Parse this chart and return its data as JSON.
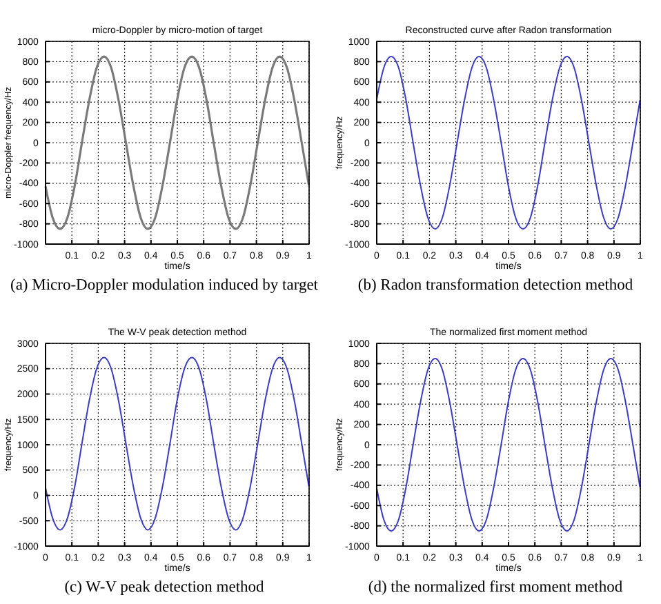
{
  "chart_data": [
    {
      "type": "line",
      "title": "micro-Doppler by micro-motion of target",
      "xlabel": "time/s",
      "ylabel": "micro-Doppler frequency/Hz",
      "annotations": [
        "(a) Micro-Doppler modulation induced by target"
      ],
      "xlim": [
        0,
        1
      ],
      "ylim": [
        -1000,
        1000
      ],
      "xticks": [
        0.1,
        0.2,
        0.3,
        0.4,
        0.5,
        0.6,
        0.7,
        0.8,
        0.9,
        1
      ],
      "yticks": [
        -1000,
        -800,
        -600,
        -400,
        -200,
        0,
        200,
        400,
        600,
        800,
        1000
      ],
      "grid": true,
      "line_style": "solid",
      "x": [
        0,
        0.027,
        0.055,
        0.083,
        0.111,
        0.138,
        0.166,
        0.194,
        0.222,
        0.249,
        0.277,
        0.305,
        0.333,
        0.361,
        0.388,
        0.416,
        0.444,
        0.472,
        0.499,
        0.527,
        0.555,
        0.583,
        0.611,
        0.638,
        0.666,
        0.694,
        0.722,
        0.749,
        0.777,
        0.805,
        0.833,
        0.861,
        0.888,
        0.916,
        0.944,
        0.972,
        0.999
      ],
      "series": [
        {
          "color": "#7a7a7a",
          "values": [
            -430,
            -740,
            -850,
            -740,
            -420,
            0,
            420,
            740,
            850,
            740,
            420,
            0,
            -420,
            -740,
            -850,
            -740,
            -420,
            0,
            420,
            740,
            850,
            740,
            420,
            0,
            -420,
            -740,
            -850,
            -740,
            -420,
            0,
            420,
            740,
            850,
            740,
            420,
            0,
            -420
          ]
        }
      ]
    },
    {
      "type": "line",
      "title": "Reconstructed curve after Radon transformation",
      "xlabel": "time/s",
      "ylabel": "frequency/Hz",
      "annotations": [
        "(b) Radon transformation detection method"
      ],
      "xlim": [
        0,
        1
      ],
      "ylim": [
        -1000,
        1000
      ],
      "xticks": [
        0,
        0.1,
        0.2,
        0.3,
        0.4,
        0.5,
        0.6,
        0.7,
        0.8,
        0.9,
        1
      ],
      "yticks": [
        -1000,
        -800,
        -600,
        -400,
        -200,
        0,
        200,
        400,
        600,
        800,
        1000
      ],
      "grid": true,
      "line_style": "solid",
      "x": [
        0,
        0.027,
        0.055,
        0.083,
        0.111,
        0.138,
        0.166,
        0.194,
        0.222,
        0.249,
        0.277,
        0.305,
        0.333,
        0.361,
        0.388,
        0.416,
        0.444,
        0.472,
        0.499,
        0.527,
        0.555,
        0.583,
        0.611,
        0.638,
        0.666,
        0.694,
        0.722,
        0.749,
        0.777,
        0.805,
        0.833,
        0.861,
        0.888,
        0.916,
        0.944,
        0.972,
        0.999
      ],
      "series": [
        {
          "color": "#3b3bc4",
          "values": [
            430,
            740,
            850,
            740,
            420,
            0,
            -420,
            -740,
            -850,
            -740,
            -420,
            0,
            420,
            740,
            850,
            740,
            420,
            0,
            -420,
            -740,
            -850,
            -740,
            -420,
            0,
            420,
            740,
            850,
            740,
            420,
            0,
            -420,
            -740,
            -850,
            -740,
            -420,
            0,
            420
          ]
        }
      ]
    },
    {
      "type": "line",
      "title": "The W-V peak detection method",
      "xlabel": "time/s",
      "ylabel": "frequency/Hz",
      "annotations": [
        "(c) W-V peak detection method"
      ],
      "xlim": [
        0,
        1
      ],
      "ylim": [
        -1000,
        3000
      ],
      "xticks": [
        0,
        0.1,
        0.2,
        0.3,
        0.4,
        0.5,
        0.6,
        0.7,
        0.8,
        0.9,
        1
      ],
      "yticks": [
        -1000,
        -500,
        0,
        500,
        1000,
        1500,
        2000,
        2500,
        3000
      ],
      "grid": true,
      "line_style": "solid",
      "x": [
        0,
        0.027,
        0.055,
        0.083,
        0.111,
        0.138,
        0.166,
        0.194,
        0.222,
        0.249,
        0.277,
        0.305,
        0.333,
        0.361,
        0.388,
        0.416,
        0.444,
        0.472,
        0.499,
        0.527,
        0.555,
        0.583,
        0.611,
        0.638,
        0.666,
        0.694,
        0.722,
        0.749,
        0.777,
        0.805,
        0.833,
        0.861,
        0.888,
        0.916,
        0.944,
        0.972,
        0.999
      ],
      "series": [
        {
          "color": "#3b3bc4",
          "values": [
            150,
            -450,
            -680,
            -450,
            180,
            1020,
            1870,
            2500,
            2720,
            2500,
            1870,
            1020,
            180,
            -450,
            -680,
            -450,
            180,
            1020,
            1870,
            2500,
            2720,
            2500,
            1870,
            1020,
            180,
            -450,
            -680,
            -450,
            180,
            1020,
            1870,
            2500,
            2720,
            2500,
            1870,
            1020,
            180
          ]
        }
      ]
    },
    {
      "type": "line",
      "title": "The normalized first moment method",
      "xlabel": "time/s",
      "ylabel": "frequency/Hz",
      "annotations": [
        "(d) the normalized first moment method"
      ],
      "xlim": [
        0,
        1
      ],
      "ylim": [
        -1000,
        1000
      ],
      "xticks": [
        0,
        0.1,
        0.2,
        0.3,
        0.4,
        0.5,
        0.6,
        0.7,
        0.8,
        0.9,
        1
      ],
      "yticks": [
        -1000,
        -800,
        -600,
        -400,
        -200,
        0,
        200,
        400,
        600,
        800,
        1000
      ],
      "grid": true,
      "line_style": "solid",
      "x": [
        0,
        0.027,
        0.055,
        0.083,
        0.111,
        0.138,
        0.166,
        0.194,
        0.222,
        0.249,
        0.277,
        0.305,
        0.333,
        0.361,
        0.388,
        0.416,
        0.444,
        0.472,
        0.499,
        0.527,
        0.555,
        0.583,
        0.611,
        0.638,
        0.666,
        0.694,
        0.722,
        0.749,
        0.777,
        0.805,
        0.833,
        0.861,
        0.888,
        0.916,
        0.944,
        0.972,
        0.999
      ],
      "series": [
        {
          "color": "#3b3bc4",
          "values": [
            -430,
            -740,
            -850,
            -740,
            -420,
            0,
            420,
            740,
            850,
            740,
            420,
            0,
            -420,
            -740,
            -850,
            -740,
            -420,
            0,
            420,
            740,
            850,
            740,
            420,
            0,
            -420,
            -740,
            -850,
            -740,
            -420,
            0,
            420,
            740,
            850,
            740,
            420,
            0,
            -420
          ]
        }
      ]
    }
  ]
}
